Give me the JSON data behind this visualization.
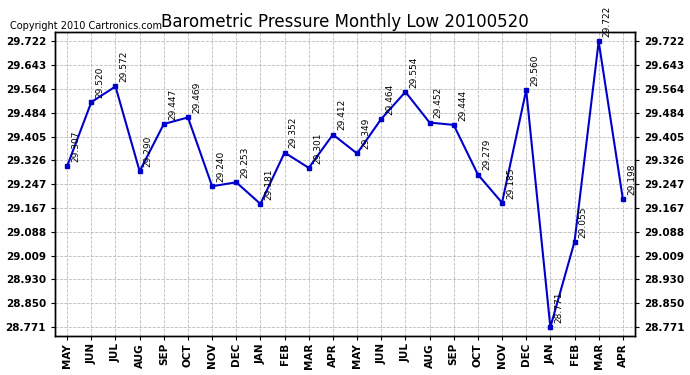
{
  "title": "Barometric Pressure Monthly Low 20100520",
  "copyright": "Copyright 2010 Cartronics.com",
  "months": [
    "MAY",
    "JUN",
    "JUL",
    "AUG",
    "SEP",
    "OCT",
    "NOV",
    "DEC",
    "JAN",
    "FEB",
    "MAR",
    "APR",
    "MAY",
    "JUN",
    "JUL",
    "AUG",
    "SEP",
    "OCT",
    "NOV",
    "DEC",
    "JAN",
    "FEB",
    "MAR",
    "APR"
  ],
  "values": [
    29.307,
    29.52,
    29.572,
    29.29,
    29.447,
    29.469,
    29.24,
    29.253,
    29.181,
    29.352,
    29.301,
    29.412,
    29.349,
    29.464,
    29.554,
    29.452,
    29.444,
    29.279,
    29.185,
    29.56,
    28.771,
    29.055,
    29.722,
    29.198
  ],
  "ylim_min": 28.771,
  "ylim_max": 29.722,
  "yticks": [
    29.722,
    29.643,
    29.564,
    29.484,
    29.405,
    29.326,
    29.247,
    29.167,
    29.088,
    29.009,
    28.93,
    28.85,
    28.771
  ],
  "line_color": "#0000cc",
  "marker_color": "#0000cc",
  "bg_color": "#ffffff",
  "grid_color": "#aaaaaa",
  "title_fontsize": 12,
  "copyright_fontsize": 7,
  "label_fontsize": 6.5
}
